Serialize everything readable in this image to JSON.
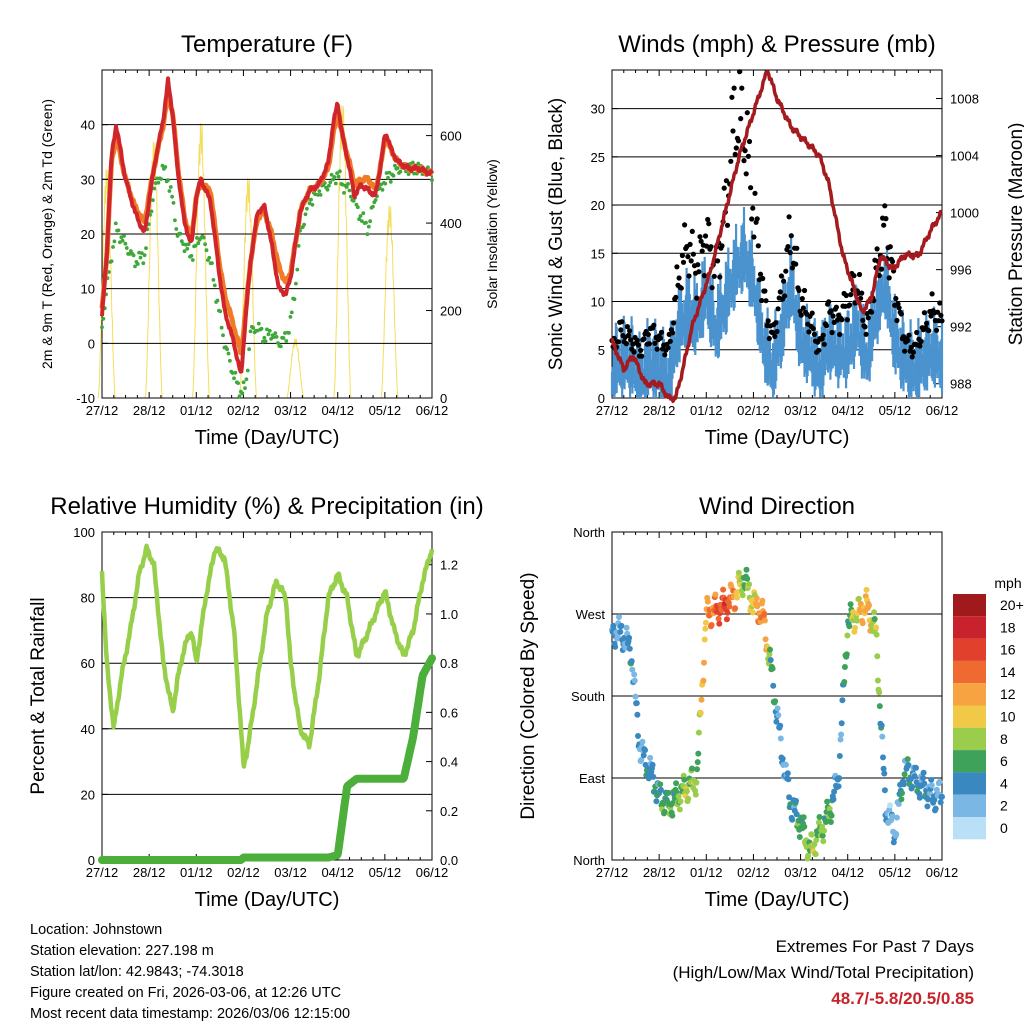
{
  "x_ticks": [
    "27/12",
    "28/12",
    "01/12",
    "02/12",
    "03/12",
    "04/12",
    "05/12",
    "06/12"
  ],
  "panels": {
    "temperature": {
      "title": "Temperature (F)",
      "ylabel_left": "2m & 9m T (Red, Orange) & 2m Td (Green)",
      "ylabel_right": "Solar Insolation (Yellow)",
      "xlabel": "Time (Day/UTC)",
      "yticks_left": [
        "-10",
        "0",
        "10",
        "20",
        "30",
        "40"
      ],
      "yticks_right": [
        "0",
        "200",
        "400",
        "600"
      ]
    },
    "winds": {
      "title": "Winds (mph) & Pressure (mb)",
      "ylabel_left": "Sonic Wind & Gust (Blue, Black)",
      "ylabel_right": "Station Pressure (Maroon)",
      "xlabel": "Time (Day/UTC)",
      "yticks_left": [
        "0",
        "5",
        "10",
        "15",
        "20",
        "25",
        "30"
      ],
      "yticks_right": [
        "988",
        "992",
        "996",
        "1000",
        "1004",
        "1008"
      ]
    },
    "humidity": {
      "title": "Relative Humidity (%) & Precipitation (in)",
      "ylabel_left": "Percent & Total Rainfall",
      "xlabel": "Time (Day/UTC)",
      "yticks_left": [
        "0",
        "20",
        "40",
        "60",
        "80",
        "100"
      ],
      "yticks_right": [
        "0.0",
        "0.2",
        "0.4",
        "0.6",
        "0.8",
        "1.0",
        "1.2"
      ]
    },
    "direction": {
      "title": "Wind Direction",
      "ylabel_left": "Direction (Colored By Speed)",
      "xlabel": "Time (Day/UTC)",
      "yticks_left": [
        "North",
        "East",
        "South",
        "West",
        "North"
      ],
      "legend_title": "mph",
      "legend_labels": [
        "20+",
        "18",
        "16",
        "14",
        "12",
        "10",
        "8",
        "6",
        "4",
        "2",
        "0"
      ],
      "legend_colors": [
        "#a01a1c",
        "#c8232c",
        "#e0402c",
        "#ef6a30",
        "#f7a341",
        "#f2c946",
        "#9acd4c",
        "#3ea25a",
        "#3a88c0",
        "#7ab7e4",
        "#b9e0f6"
      ]
    }
  },
  "chart_data": [
    {
      "type": "line",
      "title": "Temperature (F)",
      "xlabel": "Time (Day/UTC)",
      "x": [
        0,
        0.1,
        0.2,
        0.3,
        0.5,
        0.7,
        0.9,
        1.1,
        1.3,
        1.4,
        1.5,
        1.6,
        1.75,
        1.9,
        2.0,
        2.1,
        2.3,
        2.5,
        2.6,
        2.8,
        2.95,
        3.05,
        3.15,
        3.3,
        3.45,
        3.6,
        3.75,
        3.9,
        4.0,
        4.1,
        4.2,
        4.4,
        4.6,
        4.8,
        4.9,
        5.0,
        5.1,
        5.25,
        5.35,
        5.5,
        5.65,
        5.8,
        5.9,
        6.0,
        6.05,
        6.15,
        6.3,
        6.5,
        6.7,
        7.0
      ],
      "series": [
        {
          "name": "2m T (Red)",
          "color": "#d0262b",
          "values": [
            5,
            16,
            34,
            40,
            30,
            24,
            20,
            32,
            41,
            48,
            42,
            32,
            22,
            18,
            27,
            30,
            26,
            12,
            6,
            0,
            -6,
            5,
            15,
            24,
            25,
            18,
            10,
            9,
            12,
            18,
            24,
            28,
            29,
            33,
            40,
            44,
            38,
            32,
            27,
            29,
            28,
            27,
            32,
            38,
            38,
            35,
            33,
            32,
            32,
            31
          ]
        },
        {
          "name": "9m T (Orange)",
          "color": "#f07a26",
          "values": [
            6,
            16,
            33,
            38,
            30,
            25,
            22,
            32,
            40,
            46,
            42,
            33,
            23,
            19,
            27,
            29,
            28,
            14,
            9,
            3,
            -2,
            6,
            15,
            23,
            24,
            20,
            14,
            11,
            13,
            18,
            24,
            28,
            29,
            32,
            38,
            42,
            38,
            33,
            29,
            30,
            30,
            28,
            32,
            37,
            37,
            35,
            33,
            32,
            32,
            31
          ]
        },
        {
          "name": "2m Td (Green)",
          "color": "#3ea83a",
          "values": [
            3,
            10,
            16,
            21,
            18,
            15,
            16,
            28,
            32,
            30,
            26,
            20,
            18,
            16,
            18,
            20,
            15,
            5,
            0,
            -6,
            -9,
            -8,
            2,
            3,
            1,
            2,
            0,
            1,
            4,
            10,
            20,
            26,
            28,
            29,
            30,
            31,
            29,
            28,
            26,
            23,
            21,
            27,
            28,
            30,
            30,
            31,
            32,
            32,
            32,
            31
          ]
        }
      ],
      "solar_insolation": {
        "name": "Solar Insolation (Yellow)",
        "color": "#f5dd5c",
        "days": [
          0.1,
          1.1,
          2.1,
          3.1,
          4.1,
          5.1,
          6.1
        ],
        "peaks": [
          500,
          560,
          600,
          480,
          130,
          640,
          420
        ]
      },
      "xlim": [
        0,
        7
      ],
      "ylim": [
        -10,
        50
      ],
      "ylim_right": [
        0,
        750
      ]
    },
    {
      "type": "scatter",
      "title": "Winds (mph) & Pressure (mb)",
      "xlabel": "Time (Day/UTC)",
      "x": [
        0,
        0.2,
        0.4,
        0.6,
        0.8,
        1.0,
        1.2,
        1.4,
        1.6,
        1.8,
        2.0,
        2.2,
        2.4,
        2.6,
        2.8,
        3.0,
        3.2,
        3.4,
        3.6,
        3.8,
        4.0,
        4.2,
        4.4,
        4.6,
        4.8,
        5.0,
        5.2,
        5.4,
        5.6,
        5.8,
        6.0,
        6.2,
        6.4,
        6.6,
        6.8,
        7.0
      ],
      "series": [
        {
          "name": "Sonic Wind (Blue)",
          "color": "#4a93cf",
          "values": [
            3,
            4,
            4,
            2,
            4,
            3,
            2,
            7,
            9,
            8,
            11,
            7,
            10,
            13,
            15,
            12,
            6,
            3,
            7,
            12,
            6,
            5,
            3,
            6,
            5,
            5,
            8,
            4,
            9,
            12,
            6,
            4,
            3,
            4,
            5,
            4
          ]
        },
        {
          "name": "Gust (Black)",
          "color": "#000000",
          "values": [
            5,
            7,
            6,
            5,
            7,
            6,
            5,
            12,
            16,
            13,
            17,
            13,
            19,
            29,
            28,
            20,
            11,
            6,
            11,
            17,
            10,
            8,
            5,
            9,
            8,
            10,
            12,
            7,
            13,
            18,
            11,
            6,
            5,
            7,
            9,
            8
          ]
        }
      ],
      "pressure": {
        "name": "Station Pressure (Maroon)",
        "color": "#a31a1f",
        "x": [
          0,
          0.25,
          0.45,
          0.7,
          1.0,
          1.2,
          1.35,
          1.5,
          1.7,
          1.9,
          2.1,
          2.4,
          2.7,
          3.0,
          3.3,
          3.5,
          3.8,
          4.1,
          4.4,
          4.6,
          4.9,
          5.1,
          5.3,
          5.5,
          5.7,
          5.95,
          6.2,
          6.5,
          6.8,
          7.0
        ],
        "values": [
          991,
          989,
          990,
          988,
          988,
          987,
          987,
          989,
          992,
          994,
          996,
          1000,
          1004,
          1007,
          1010,
          1008,
          1006,
          1005,
          1004,
          1002,
          997,
          995,
          993,
          994,
          997,
          996,
          997,
          997,
          999,
          1000
        ]
      },
      "xlim": [
        0,
        7
      ],
      "ylim": [
        0,
        34
      ],
      "ylim_right": [
        987,
        1010
      ]
    },
    {
      "type": "line",
      "title": "Relative Humidity (%) & Precipitation (in)",
      "xlabel": "Time (Day/UTC)",
      "x": [
        0,
        0.1,
        0.25,
        0.4,
        0.6,
        0.8,
        0.95,
        1.1,
        1.3,
        1.5,
        1.6,
        1.75,
        1.9,
        2.0,
        2.2,
        2.4,
        2.6,
        2.8,
        2.95,
        3.0,
        3.1,
        3.3,
        3.5,
        3.7,
        3.9,
        4.0,
        4.2,
        4.4,
        4.6,
        4.8,
        5.0,
        5.2,
        5.4,
        5.6,
        5.8,
        6.0,
        6.2,
        6.4,
        6.6,
        6.8,
        7.0
      ],
      "series": [
        {
          "name": "Relative Humidity",
          "color": "#97cf4a",
          "values": [
            88,
            60,
            40,
            55,
            70,
            88,
            95,
            90,
            60,
            45,
            55,
            65,
            70,
            60,
            80,
            95,
            92,
            70,
            40,
            28,
            35,
            55,
            75,
            85,
            80,
            60,
            40,
            35,
            55,
            80,
            87,
            80,
            62,
            68,
            75,
            82,
            70,
            62,
            70,
            85,
            95
          ]
        },
        {
          "name": "Total Rainfall",
          "color": "#4caf3c",
          "values": [
            0,
            0,
            0,
            0,
            0,
            0,
            0,
            0,
            0,
            0,
            0,
            0,
            0,
            0,
            0,
            0,
            0,
            0,
            0,
            0.01,
            0.01,
            0.01,
            0.01,
            0.01,
            0.01,
            0.01,
            0.01,
            0.01,
            0.01,
            0.01,
            0.02,
            0.3,
            0.33,
            0.33,
            0.33,
            0.33,
            0.33,
            0.33,
            0.5,
            0.75,
            0.82
          ]
        }
      ],
      "xlim": [
        0,
        7
      ],
      "ylim": [
        0,
        100
      ],
      "ylim_right": [
        0,
        1.333
      ]
    },
    {
      "type": "scatter",
      "title": "Wind Direction",
      "xlabel": "Time (Day/UTC)",
      "ylabel": "Direction (Colored By Speed)",
      "x": [
        0.2,
        0.4,
        0.6,
        0.8,
        1.0,
        1.2,
        1.4,
        1.6,
        1.8,
        2.0,
        2.2,
        2.4,
        2.6,
        2.8,
        3.0,
        3.2,
        3.4,
        3.6,
        3.8,
        4.0,
        4.2,
        4.4,
        4.6,
        4.8,
        5.0,
        5.2,
        5.4,
        5.6,
        5.8,
        6.0,
        6.2,
        6.4,
        6.6,
        6.8
      ],
      "direction_deg": [
        250,
        230,
        120,
        100,
        70,
        60,
        70,
        80,
        90,
        270,
        275,
        280,
        290,
        310,
        280,
        270,
        200,
        120,
        60,
        40,
        10,
        30,
        50,
        90,
        260,
        270,
        280,
        250,
        60,
        30,
        100,
        90,
        80,
        70
      ],
      "speed_mph": [
        3,
        4,
        3,
        4,
        5,
        6,
        7,
        8,
        7,
        12,
        14,
        16,
        12,
        6,
        10,
        14,
        5,
        3,
        4,
        6,
        8,
        7,
        6,
        3,
        6,
        10,
        12,
        8,
        3,
        2,
        5,
        4,
        4,
        3
      ],
      "xlim": [
        0,
        7
      ],
      "ylim": [
        0,
        360
      ]
    }
  ],
  "info": {
    "location": "Location: Johnstown",
    "elevation": "Station elevation: 227.198 m",
    "latlon": "Station lat/lon: 42.9843; -74.3018",
    "created": "Figure created on Fri, 2026-03-06, at 12:26 UTC",
    "recent": "Most recent data timestamp: 2026/03/06 12:15:00"
  },
  "extremes": {
    "title": "Extremes For Past 7 Days",
    "subtitle": "(High/Low/Max Wind/Total Precipitation)",
    "values": "48.7/-5.8/20.5/0.85"
  }
}
